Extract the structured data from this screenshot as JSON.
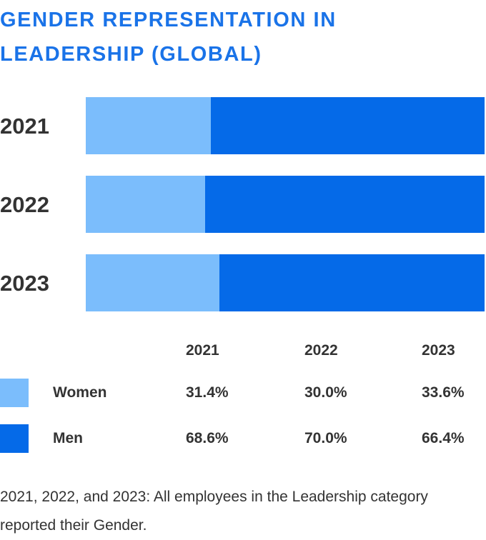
{
  "chart_data": {
    "type": "bar",
    "orientation": "horizontal",
    "stacked": true,
    "normalized": true,
    "title": "GENDER REPRESENTATION IN LEADERSHIP (GLOBAL)",
    "categories": [
      "2021",
      "2022",
      "2023"
    ],
    "series": [
      {
        "name": "Women",
        "values": [
          31.4,
          30.0,
          33.6
        ],
        "labels": [
          "31.4%",
          "30.0%",
          "33.6%"
        ],
        "color": "#7bbdfc"
      },
      {
        "name": "Men",
        "values": [
          68.6,
          70.0,
          66.4
        ],
        "labels": [
          "68.6%",
          "70.0%",
          "66.4%"
        ],
        "color": "#056ae8"
      }
    ],
    "xlim": [
      0,
      100
    ],
    "grid": false,
    "legend": "table below chart",
    "footnote": "2021, 2022, and 2023: All employees in the Leadership category reported their Gender."
  }
}
